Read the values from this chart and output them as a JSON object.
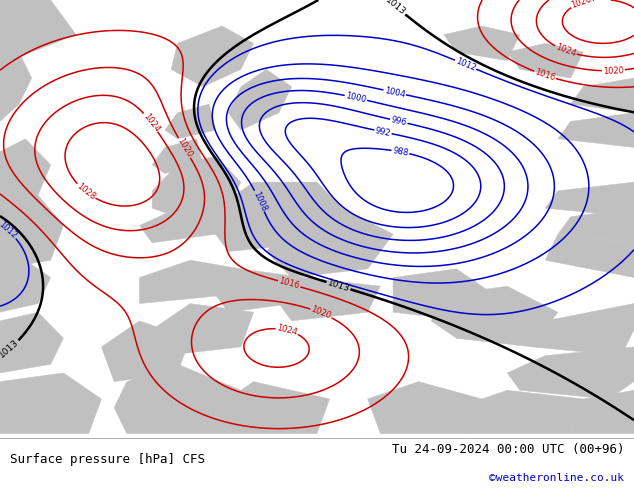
{
  "title_left": "Surface pressure [hPa] CFS",
  "title_right": "Tu 24-09-2024 00:00 UTC (00+96)",
  "title_right_sub": "©weatheronline.co.uk",
  "bg_color": "#b0d878",
  "gray_land_color": "#c0c0c0",
  "contour_blue_color": "#0000cc",
  "contour_red_color": "#cc0000",
  "contour_black_color": "#000000",
  "fig_width": 6.34,
  "fig_height": 4.9,
  "dpi": 100,
  "blue_levels": [
    988,
    992,
    996,
    1000,
    1004,
    1008,
    1012
  ],
  "red_levels": [
    1016,
    1020,
    1024,
    1028
  ],
  "black_levels": [
    1013
  ]
}
